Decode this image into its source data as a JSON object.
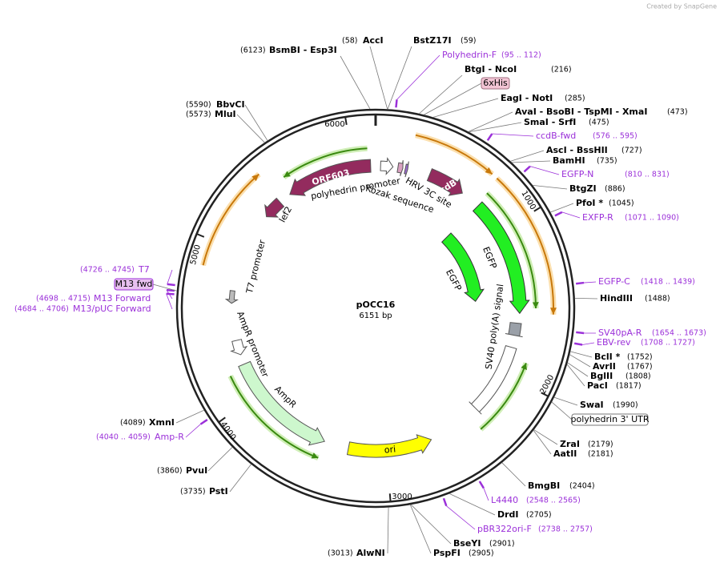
{
  "watermark": "Created by SnapGene",
  "plasmid": {
    "name": "pOCC16",
    "length": "6151 bp"
  },
  "tick_labels": [
    "1000",
    "2000",
    "3000",
    "4000",
    "5000",
    "6000"
  ],
  "enzymes": [
    {
      "name": "BsmBI - Esp3I",
      "position": "(6123)"
    },
    {
      "name": "AccI",
      "position": "(58)"
    },
    {
      "name": "BstZ17I",
      "position": "(59)"
    },
    {
      "name": "BtgI - NcoI",
      "position": "(216)"
    },
    {
      "name": "EagI - NotI",
      "position": "(285)"
    },
    {
      "name": "AvaI - BsoBI - TspMI - XmaI",
      "position": "(473)"
    },
    {
      "name": "SmaI - SrfI",
      "position": "(475)"
    },
    {
      "name": "AscI - BssHII",
      "position": "(727)"
    },
    {
      "name": "BamHI",
      "position": "(735)"
    },
    {
      "name": "BtgZI",
      "position": "(886)"
    },
    {
      "name": "PfoI *",
      "position": "(1045)"
    },
    {
      "name": "HindIII",
      "position": "(1488)"
    },
    {
      "name": "BclI *",
      "position": "(1752)"
    },
    {
      "name": "AvrII",
      "position": "(1767)"
    },
    {
      "name": "BglII",
      "position": "(1808)"
    },
    {
      "name": "PacI",
      "position": "(1817)"
    },
    {
      "name": "SwaI",
      "position": "(1990)"
    },
    {
      "name": "ZraI",
      "position": "(2179)"
    },
    {
      "name": "AatII",
      "position": "(2181)"
    },
    {
      "name": "BmgBI",
      "position": "(2404)"
    },
    {
      "name": "DrdI",
      "position": "(2705)"
    },
    {
      "name": "BseYI",
      "position": "(2901)"
    },
    {
      "name": "PspFI",
      "position": "(2905)"
    },
    {
      "name": "AlwNI",
      "position": "(3013)"
    },
    {
      "name": "PstI",
      "position": "(3735)"
    },
    {
      "name": "PvuI",
      "position": "(3860)"
    },
    {
      "name": "XmnI",
      "position": "(4089)"
    },
    {
      "name": "MluI",
      "position": "(5573)"
    },
    {
      "name": "BbvCI",
      "position": "(5590)"
    }
  ],
  "primers": [
    {
      "name": "Polyhedrin-F",
      "position": "(95 .. 112)"
    },
    {
      "name": "ccdB-fwd",
      "position": "(576 .. 595)"
    },
    {
      "name": "EGFP-N",
      "position": "(810 .. 831)"
    },
    {
      "name": "EXFP-R",
      "position": "(1071 .. 1090)"
    },
    {
      "name": "EGFP-C",
      "position": "(1418 .. 1439)"
    },
    {
      "name": "SV40pA-R",
      "position": "(1654 .. 1673)"
    },
    {
      "name": "EBV-rev",
      "position": "(1708 .. 1727)"
    },
    {
      "name": "L4440",
      "position": "(2548 .. 2565)"
    },
    {
      "name": "pBR322ori-F",
      "position": "(2738 .. 2757)"
    },
    {
      "name": "Amp-R",
      "position": "(4040 .. 4059)"
    },
    {
      "name": "M13/pUC Forward",
      "position": "(4684 .. 4706)"
    },
    {
      "name": "M13 Forward",
      "position": "(4698 .. 4715)"
    },
    {
      "name": "T7",
      "position": "(4726 .. 4745)"
    }
  ],
  "boxed_labels": [
    "6xHis",
    "polyhedrin 3' UTR",
    "M13 fwd"
  ],
  "features": [
    "ORF603",
    "polyhedrin promoter",
    "Kozak sequence",
    "HRV 3C site",
    "ccdB",
    "lef2",
    "EGFP",
    "EGFP",
    "SV40 poly(A) signal",
    "T7 promoter",
    "AmpR promoter",
    "AmpR",
    "ori"
  ]
}
